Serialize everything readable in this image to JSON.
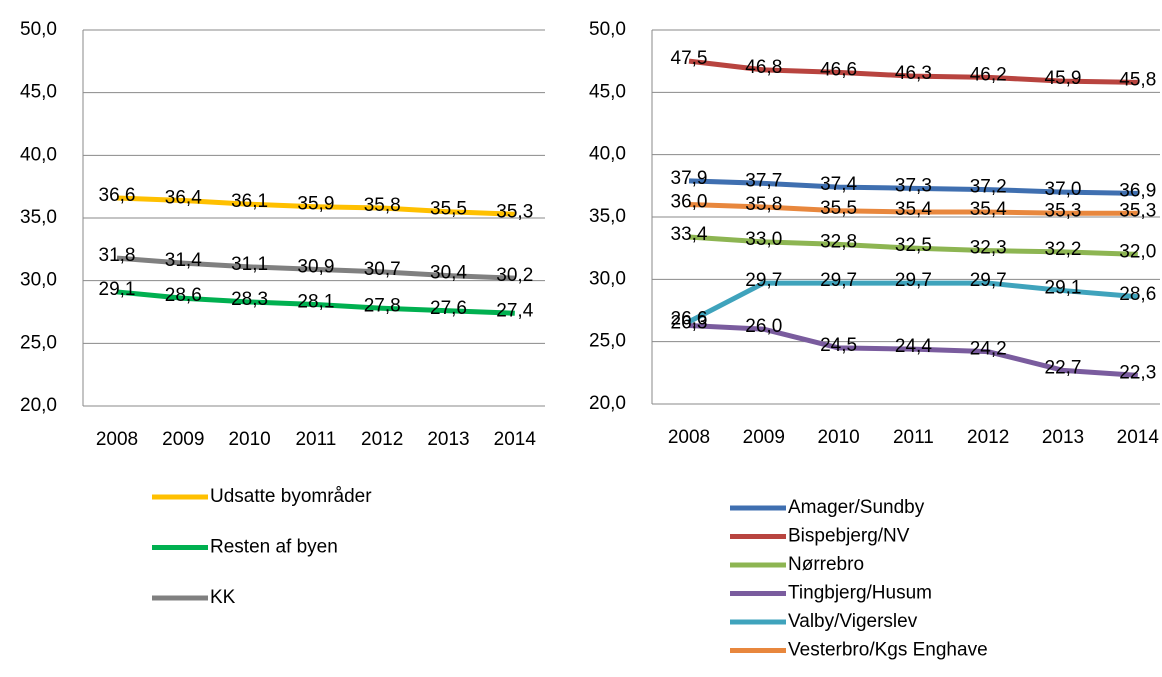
{
  "chart_data": [
    {
      "type": "line",
      "categories": [
        "2008",
        "2009",
        "2010",
        "2011",
        "2012",
        "2013",
        "2014"
      ],
      "ylim": [
        20,
        50
      ],
      "yticks": [
        {
          "value": 20,
          "label": "20,0"
        },
        {
          "value": 25,
          "label": "25,0"
        },
        {
          "value": 30,
          "label": "30,0"
        },
        {
          "value": 35,
          "label": "35,0"
        },
        {
          "value": 40,
          "label": "40,0"
        },
        {
          "value": 45,
          "label": "45,0"
        },
        {
          "value": 50,
          "label": "50,0"
        }
      ],
      "grid": true,
      "legend": "bottom",
      "series": [
        {
          "name": "Udsatte byområder",
          "color": "#ffc000",
          "values": [
            36.6,
            36.4,
            36.1,
            35.9,
            35.8,
            35.5,
            35.3
          ],
          "value_labels": [
            "36,6",
            "36,4",
            "36,1",
            "35,9",
            "35,8",
            "35,5",
            "35,3"
          ]
        },
        {
          "name": "Resten af byen",
          "color": "#00b050",
          "values": [
            29.1,
            28.6,
            28.3,
            28.1,
            27.8,
            27.6,
            27.4
          ],
          "value_labels": [
            "29,1",
            "28,6",
            "28,3",
            "28,1",
            "27,8",
            "27,6",
            "27,4"
          ]
        },
        {
          "name": "KK",
          "color": "#808080",
          "values": [
            31.8,
            31.4,
            31.1,
            30.9,
            30.7,
            30.4,
            30.2
          ],
          "value_labels": [
            "31,8",
            "31,4",
            "31,1",
            "30,9",
            "30,7",
            "30,4",
            "30,2"
          ]
        }
      ]
    },
    {
      "type": "line",
      "categories": [
        "2008",
        "2009",
        "2010",
        "2011",
        "2012",
        "2013",
        "2014"
      ],
      "ylim": [
        20,
        50
      ],
      "yticks": [
        {
          "value": 20,
          "label": "20,0"
        },
        {
          "value": 25,
          "label": "25,0"
        },
        {
          "value": 30,
          "label": "30,0"
        },
        {
          "value": 35,
          "label": "35,0"
        },
        {
          "value": 40,
          "label": "40,0"
        },
        {
          "value": 45,
          "label": "45,0"
        },
        {
          "value": 50,
          "label": "50,0"
        }
      ],
      "grid": true,
      "legend": "bottom",
      "series": [
        {
          "name": "Amager/Sundby",
          "color": "#3f6fb0",
          "values": [
            37.9,
            37.7,
            37.4,
            37.3,
            37.2,
            37.0,
            36.9
          ],
          "value_labels": [
            "37,9",
            "37,7",
            "37,4",
            "37,3",
            "37,2",
            "37,0",
            "36,9"
          ]
        },
        {
          "name": "Bispebjerg/NV",
          "color": "#b8443f",
          "values": [
            47.5,
            46.8,
            46.6,
            46.3,
            46.2,
            45.9,
            45.8
          ],
          "value_labels": [
            "47,5",
            "46,8",
            "46,6",
            "46,3",
            "46,2",
            "45,9",
            "45,8"
          ]
        },
        {
          "name": "Nørrebro",
          "color": "#8db552",
          "values": [
            33.4,
            33.0,
            32.8,
            32.5,
            32.3,
            32.2,
            32.0
          ],
          "value_labels": [
            "33,4",
            "33,0",
            "32,8",
            "32,5",
            "32,3",
            "32,2",
            "32,0"
          ]
        },
        {
          "name": "Tingbjerg/Husum",
          "color": "#7a5c9e",
          "values": [
            26.3,
            26.0,
            24.5,
            24.4,
            24.2,
            22.7,
            22.3
          ],
          "value_labels": [
            "26,3",
            "26,0",
            "24,5",
            "24,4",
            "24,2",
            "22,7",
            "22,3"
          ]
        },
        {
          "name": "Valby/Vigerslev",
          "color": "#3fa3bc",
          "values": [
            26.6,
            29.7,
            29.7,
            29.7,
            29.7,
            29.1,
            28.6
          ],
          "value_labels": [
            "26,6",
            "29,7",
            "29,7",
            "29,7",
            "29,7",
            "29,1",
            "28,6"
          ]
        },
        {
          "name": "Vesterbro/Kgs Enghave",
          "color": "#e8873d",
          "values": [
            36.0,
            35.8,
            35.5,
            35.4,
            35.4,
            35.3,
            35.3
          ],
          "value_labels": [
            "36,0",
            "35,8",
            "35,5",
            "35,4",
            "35,4",
            "35,3",
            "35,3"
          ]
        }
      ]
    }
  ]
}
